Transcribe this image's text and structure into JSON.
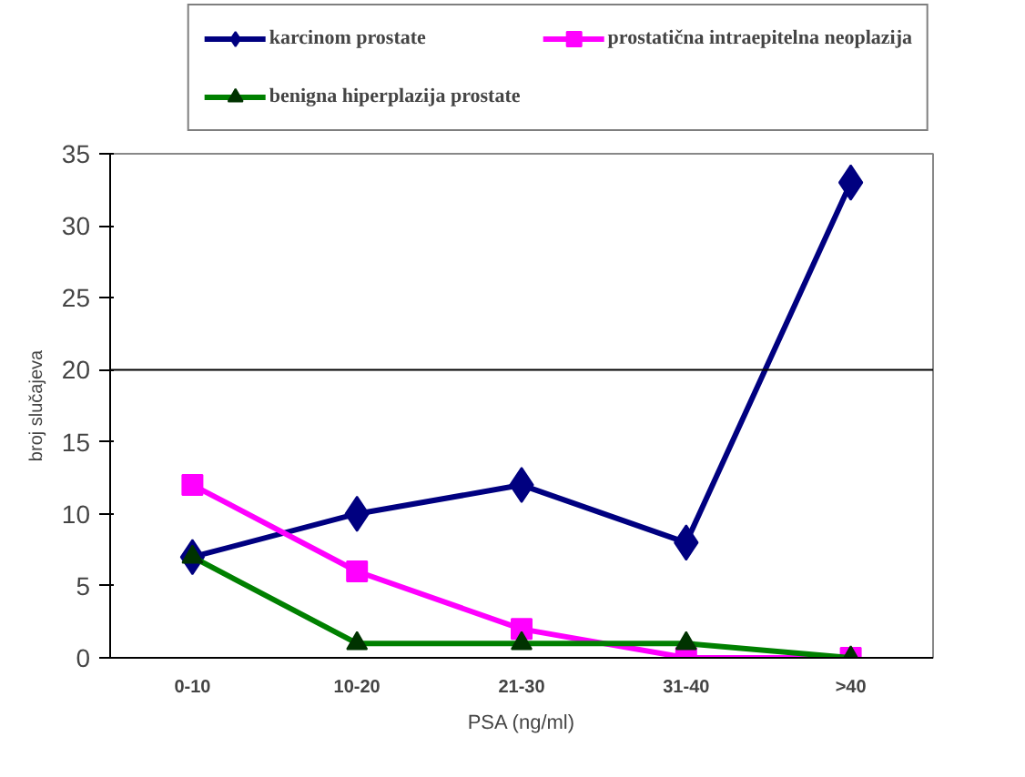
{
  "chart_data": {
    "type": "line",
    "xlabel": "PSA (ng/ml)",
    "ylabel": "broj slučajeva",
    "categories": [
      "0-10",
      "10-20",
      "21-30",
      "31-40",
      ">40"
    ],
    "series": [
      {
        "name": "karcinom prostate",
        "color": "#000080",
        "marker": "diamond",
        "values": [
          7,
          10,
          12,
          8,
          33
        ]
      },
      {
        "name": "prostatična intraepitelna neoplazija",
        "color": "#ff00ff",
        "marker": "square",
        "values": [
          12,
          6,
          2,
          0,
          0
        ]
      },
      {
        "name": "benigna hiperplazija prostate",
        "color": "#008000",
        "marker": "triangle",
        "values": [
          7,
          1,
          1,
          1,
          0
        ]
      }
    ],
    "ylim": [
      0,
      35
    ],
    "yticks": [
      0,
      5,
      10,
      15,
      20,
      25,
      30,
      35
    ],
    "ref_lines": [
      {
        "axis": "y",
        "value": 20,
        "label": null,
        "color": "#000000"
      }
    ],
    "grid": false,
    "legend": "top"
  }
}
